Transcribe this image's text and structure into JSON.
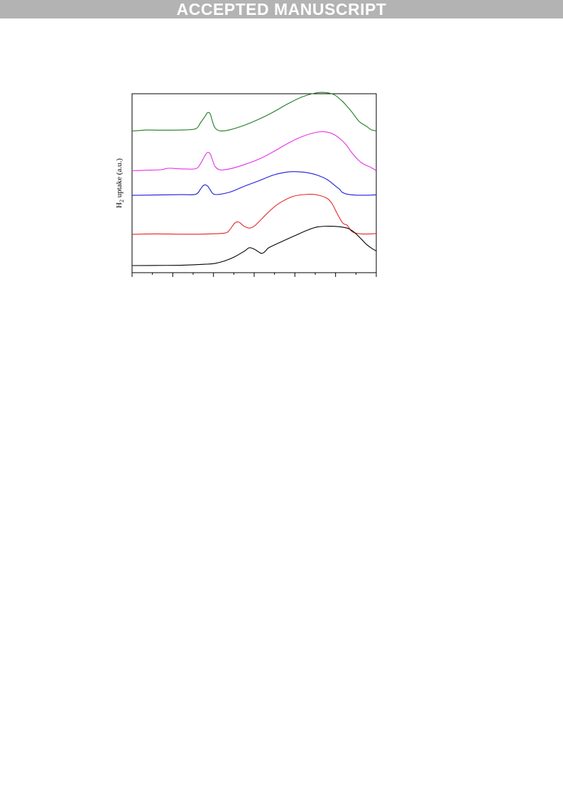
{
  "header": {
    "banner": "ACCEPTED MANUSCRIPT"
  },
  "chart_data": {
    "type": "line",
    "title": "",
    "xlabel": "",
    "ylabel": "H2 uptake (a.u.)",
    "ylabel_main": "H",
    "ylabel_sub": "2",
    "ylabel_rest": " uptake (a.u.)",
    "xlim": [
      0,
      100
    ],
    "ylim": [
      0,
      100
    ],
    "x_ticks": 13,
    "grid": false,
    "series": [
      {
        "color": "#1e7a1e",
        "x": [
          0,
          3,
          6,
          12,
          20,
          26,
          28,
          30,
          31,
          32,
          33,
          34,
          36,
          40,
          46,
          52,
          58,
          64,
          70,
          76,
          80,
          83,
          86,
          88,
          90,
          93,
          96,
          98,
          100
        ],
        "y": [
          79.7,
          80.0,
          80.3,
          80.2,
          80.3,
          81.0,
          84.5,
          88.6,
          90.6,
          89.8,
          85.0,
          81.5,
          79.8,
          80.4,
          83.1,
          86.7,
          91.0,
          95.9,
          100.0,
          102.3,
          102.2,
          100.9,
          97.4,
          94.3,
          90.9,
          85.3,
          82.5,
          80.4,
          79.8
        ]
      },
      {
        "color": "#e62ee6",
        "x": [
          0,
          6,
          12,
          14,
          16,
          20,
          26,
          28,
          30,
          31,
          32,
          33,
          34,
          36,
          40,
          46,
          52,
          58,
          64,
          70,
          76,
          80,
          83,
          86,
          88,
          90,
          93,
          95,
          98,
          100
        ],
        "y": [
          56.3,
          56.6,
          56.9,
          57.6,
          57.8,
          57.4,
          57.5,
          60.4,
          65.6,
          67.1,
          66.2,
          62.4,
          58.8,
          56.8,
          57.4,
          59.9,
          63.2,
          67.6,
          72.6,
          76.6,
          79.1,
          79.0,
          77.4,
          74.1,
          71.0,
          66.9,
          62.1,
          60.1,
          58.1,
          56.3
        ]
      },
      {
        "color": "#1b1bdd",
        "x": [
          0,
          10,
          20,
          26,
          28,
          29,
          30,
          31,
          32,
          34,
          40,
          46,
          52,
          58,
          64,
          68,
          72,
          76,
          80,
          83,
          85,
          86,
          88,
          92,
          96,
          100
        ],
        "y": [
          41.8,
          42.0,
          42.2,
          42.4,
          45.4,
          47.4,
          48.0,
          47.2,
          45.0,
          42.3,
          43.7,
          47.2,
          50.4,
          53.8,
          55.6,
          55.7,
          55.1,
          53.6,
          51.0,
          47.6,
          45.3,
          43.7,
          42.5,
          41.9,
          41.9,
          42.1
        ]
      },
      {
        "color": "#e62424",
        "x": [
          0,
          10,
          20,
          30,
          38,
          40,
          41,
          42,
          43,
          44,
          45,
          46,
          48,
          50,
          52,
          56,
          60,
          66,
          72,
          76,
          80,
          82,
          84,
          86,
          87,
          88,
          89,
          90,
          92,
          96,
          100
        ],
        "y": [
          18.8,
          19.1,
          18.9,
          19.0,
          19.6,
          21.6,
          23.5,
          25.4,
          26.2,
          25.8,
          24.6,
          23.5,
          22.5,
          23.6,
          26.3,
          32.1,
          36.9,
          41.2,
          42.4,
          42.0,
          39.9,
          36.6,
          31.0,
          26.0,
          24.8,
          24.3,
          22.3,
          20.5,
          19.4,
          19.0,
          19.3
        ]
      },
      {
        "color": "#000000",
        "x": [
          0,
          10,
          20,
          30,
          34,
          38,
          42,
          46,
          48,
          50,
          52,
          53,
          54,
          55,
          56,
          60,
          66,
          72,
          76,
          80,
          84,
          88,
          90,
          92,
          94,
          96,
          98,
          100
        ],
        "y": [
          0.4,
          0.5,
          0.6,
          1.2,
          1.7,
          3.2,
          5.6,
          8.9,
          10.9,
          10.1,
          8.3,
          7.6,
          8.1,
          9.6,
          10.9,
          13.7,
          17.6,
          21.4,
          23.2,
          23.6,
          23.4,
          22.5,
          21.1,
          18.7,
          15.8,
          12.9,
          10.7,
          9.0
        ]
      }
    ]
  }
}
